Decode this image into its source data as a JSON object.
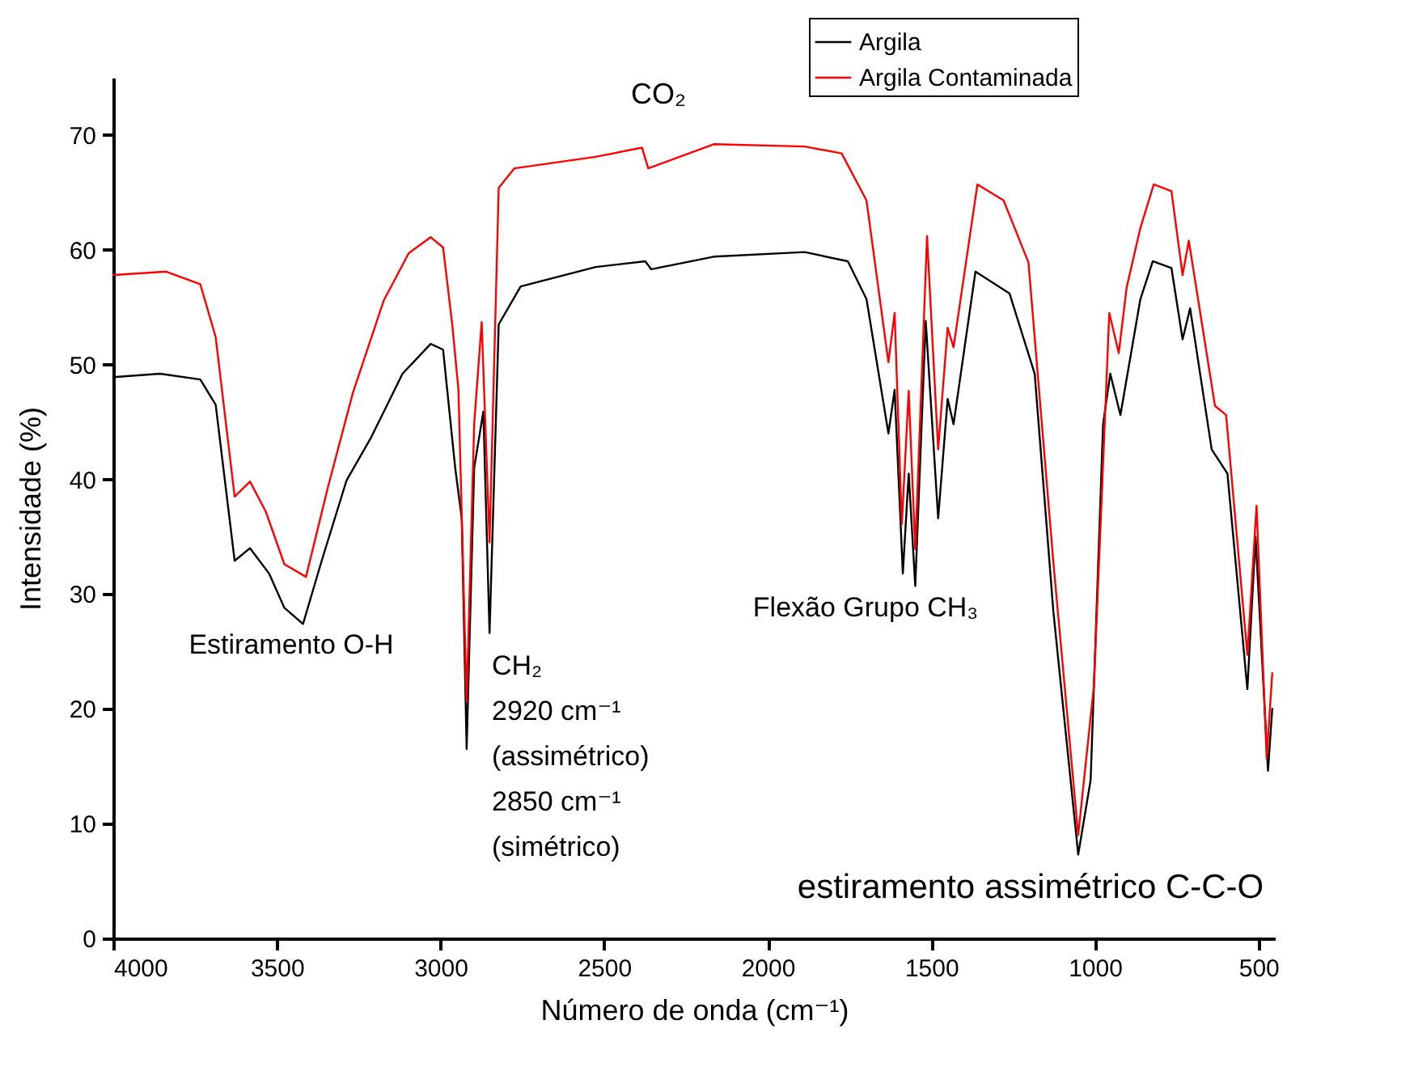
{
  "chart_data": {
    "type": "line",
    "xlabel": "Número de onda (cm⁻¹)",
    "ylabel": "Intensidade (%)",
    "xlim": [
      4000,
      450
    ],
    "xticks": [
      4000,
      3500,
      3000,
      2500,
      2000,
      1500,
      1000,
      500
    ],
    "ylim": [
      0,
      75
    ],
    "yticks": [
      0,
      10,
      20,
      30,
      40,
      50,
      60,
      70
    ],
    "legend": "top right",
    "series": [
      {
        "name": "Argila",
        "color": "#000000",
        "x": [
          4000,
          3857,
          3734,
          3687,
          3629,
          3582,
          3524,
          3477,
          3420,
          3363,
          3287,
          3211,
          3116,
          3030,
          2992,
          2955,
          2935,
          2920,
          2897,
          2869,
          2850,
          2822,
          2755,
          2526,
          2374,
          2356,
          2165,
          1887,
          1755,
          1698,
          1631,
          1612,
          1587,
          1569,
          1549,
          1517,
          1479,
          1450,
          1432,
          1365,
          1261,
          1184,
          1127,
          1051,
          1013,
          975,
          953,
          922,
          861,
          823,
          766,
          732,
          709,
          643,
          595,
          534,
          509,
          471,
          458
        ],
        "values": [
          48.9,
          49.2,
          48.7,
          46.5,
          32.9,
          34.0,
          31.8,
          28.8,
          27.4,
          32.9,
          39.9,
          43.7,
          49.2,
          51.8,
          51.3,
          41.0,
          36.6,
          16.5,
          41.0,
          45.9,
          26.6,
          53.5,
          56.8,
          58.5,
          59.0,
          58.3,
          59.4,
          59.8,
          59.0,
          55.7,
          44.0,
          47.8,
          31.8,
          40.5,
          30.7,
          53.8,
          36.6,
          47.0,
          44.8,
          58.1,
          56.2,
          49.2,
          28.5,
          7.3,
          13.8,
          44.8,
          49.2,
          45.6,
          55.7,
          59.0,
          58.4,
          52.2,
          54.9,
          42.6,
          40.5,
          21.7,
          35.0,
          14.6,
          20.0
        ]
      },
      {
        "name": "Argila Contaminada",
        "color": "#ff0000",
        "x": [
          4000,
          3838,
          3734,
          3687,
          3629,
          3582,
          3534,
          3477,
          3411,
          3344,
          3268,
          3173,
          3097,
          3030,
          2992,
          2964,
          2945,
          2920,
          2897,
          2874,
          2850,
          2822,
          2774,
          2526,
          2384,
          2365,
          2165,
          1887,
          1774,
          1698,
          1631,
          1612,
          1590,
          1569,
          1549,
          1513,
          1479,
          1450,
          1432,
          1359,
          1279,
          1203,
          1127,
          1051,
          1003,
          956,
          927,
          903,
          861,
          820,
          766,
          732,
          713,
          633,
          599,
          534,
          506,
          475,
          458
        ],
        "values": [
          57.8,
          58.1,
          57.0,
          52.4,
          38.5,
          39.8,
          37.2,
          32.6,
          31.5,
          39.3,
          47.5,
          55.6,
          59.7,
          61.1,
          60.2,
          53.5,
          47.8,
          20.6,
          44.8,
          53.7,
          34.5,
          65.4,
          67.1,
          68.1,
          68.9,
          67.1,
          69.2,
          69.0,
          68.4,
          64.3,
          50.2,
          54.5,
          36.1,
          47.7,
          33.9,
          61.2,
          42.6,
          53.2,
          51.5,
          65.7,
          64.3,
          58.9,
          32.8,
          9.0,
          22.0,
          54.5,
          51.0,
          56.7,
          61.9,
          65.7,
          65.1,
          57.8,
          60.8,
          46.4,
          45.6,
          24.7,
          37.7,
          15.7,
          23.1
        ]
      }
    ],
    "annotations": [
      "CO₂",
      "Estiramento O-H",
      "CH₂\n2920 cm⁻¹\n(assimétrico)\n2850 cm⁻¹\n(simétrico)",
      "Flexão Grupo CH₃",
      "estiramento assimétrico C-C-O"
    ]
  }
}
